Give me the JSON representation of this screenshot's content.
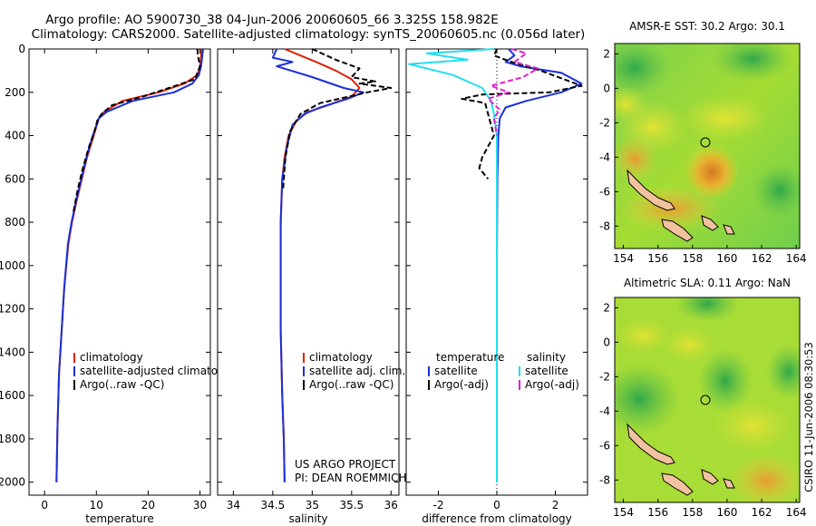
{
  "header": {
    "title_line1": "Argo profile: AO 5900730_38 04-Jun-2006 20060605_66 3.325S 158.982E",
    "title_line2": "Climatology: CARS2000. Satellite-adjusted climatology: synTS_20060605.nc (0.056d later)"
  },
  "colors": {
    "climatology": "#dd2200",
    "satellite": "#1a2fd8",
    "argo": "#000000",
    "satellite_diff_sal": "#22ddee",
    "argo_adj_sal": "#e020d0"
  },
  "chart_data": [
    {
      "type": "line",
      "name": "temperature-profile",
      "xlabel": "temperature",
      "ylabel": "",
      "xlim": [
        -3,
        32
      ],
      "ylim": [
        2060,
        0
      ],
      "x_ticks": [
        0,
        10,
        20,
        30
      ],
      "y_ticks": [
        0,
        200,
        400,
        600,
        800,
        1000,
        1200,
        1400,
        1600,
        1800,
        2000
      ],
      "legend": [
        "climatology",
        "satellite-adjusted climatology",
        "Argo(..raw -QC)"
      ],
      "series": [
        {
          "name": "climatology",
          "style": "solid",
          "color_key": "climatology",
          "x": [
            30.3,
            30.2,
            30.0,
            29.5,
            27.0,
            22.0,
            15.0,
            11.5,
            10.5,
            9.5,
            8.2,
            7.2,
            6.2,
            5.3,
            4.6,
            3.8,
            3.3,
            2.8,
            2.5,
            2.3
          ],
          "y": [
            0,
            40,
            80,
            120,
            160,
            200,
            240,
            290,
            320,
            400,
            500,
            600,
            700,
            800,
            900,
            1100,
            1300,
            1500,
            1750,
            2000
          ]
        },
        {
          "name": "satellite-adjusted climatology",
          "style": "solid",
          "color_key": "satellite",
          "x": [
            30.6,
            30.4,
            30.2,
            29.8,
            28.5,
            25.0,
            17.0,
            12.0,
            10.5,
            9.3,
            8.1,
            7.1,
            6.1,
            5.2,
            4.5,
            3.8,
            3.3,
            2.8,
            2.5,
            2.3
          ],
          "y": [
            0,
            40,
            80,
            120,
            160,
            200,
            240,
            290,
            320,
            400,
            500,
            600,
            700,
            800,
            900,
            1100,
            1300,
            1500,
            1750,
            2000
          ]
        },
        {
          "name": "Argo(..raw -QC)",
          "style": "dashed",
          "color_key": "argo",
          "x": [
            29.5,
            29.6,
            30.0,
            29.0,
            24.0,
            19.0,
            13.0,
            11.0,
            10.2,
            9.4,
            8.6,
            7.4,
            6.4,
            5.6
          ],
          "y": [
            0,
            30,
            80,
            140,
            180,
            220,
            260,
            300,
            330,
            400,
            450,
            550,
            650,
            750
          ]
        }
      ]
    },
    {
      "type": "line",
      "name": "salinity-profile",
      "xlabel": "salinity",
      "ylabel": "",
      "xlim": [
        33.8,
        36.1
      ],
      "ylim": [
        2060,
        0
      ],
      "x_ticks": [
        34,
        34.5,
        35,
        35.5,
        36
      ],
      "x_tick_labels": [
        "34",
        "34.5",
        "35",
        "35.5",
        "36"
      ],
      "legend": [
        "climatology",
        "satellite adj. clim.",
        "Argo(..raw -QC)"
      ],
      "series": [
        {
          "name": "climatology",
          "style": "solid",
          "color_key": "climatology",
          "x": [
            34.65,
            34.85,
            35.05,
            35.3,
            35.5,
            35.6,
            35.5,
            35.2,
            34.95,
            34.8,
            34.7,
            34.65,
            34.62,
            34.6,
            34.6,
            34.6,
            34.62,
            34.64,
            34.65
          ],
          "y": [
            0,
            30,
            60,
            100,
            140,
            180,
            220,
            260,
            290,
            330,
            400,
            500,
            600,
            800,
            1000,
            1300,
            1600,
            1800,
            2000
          ]
        },
        {
          "name": "satellite adj. clim.",
          "style": "solid",
          "color_key": "satellite",
          "x": [
            34.55,
            34.5,
            34.75,
            34.55,
            35.0,
            35.4,
            35.65,
            35.45,
            35.1,
            34.9,
            34.75,
            34.68,
            34.62,
            34.6,
            34.6,
            34.6,
            34.62,
            34.64,
            34.65
          ],
          "y": [
            0,
            40,
            60,
            80,
            130,
            180,
            200,
            230,
            270,
            300,
            350,
            450,
            600,
            800,
            1000,
            1300,
            1600,
            1800,
            2000
          ]
        },
        {
          "name": "Argo(..raw -QC)",
          "style": "dashed",
          "color_key": "argo",
          "x": [
            35.0,
            35.3,
            35.6,
            35.5,
            35.8,
            35.6,
            36.0,
            35.7,
            35.1,
            34.85,
            34.72,
            34.66,
            34.63
          ],
          "y": [
            0,
            50,
            90,
            130,
            150,
            160,
            180,
            200,
            250,
            300,
            380,
            500,
            650
          ]
        }
      ],
      "annotations": [
        "US ARGO PROJECT",
        "PI: DEAN ROEMMICH"
      ]
    },
    {
      "type": "line",
      "name": "difference-profile",
      "xlabel": "difference from climatology",
      "ylabel": "",
      "xlim": [
        -3.1,
        3.1
      ],
      "ylim": [
        2060,
        0
      ],
      "x_ticks": [
        -2,
        0,
        2
      ],
      "legend_headers": [
        "temperature",
        "salinity"
      ],
      "legend": [
        "satellite",
        "Argo(-adj)",
        "satellite",
        "Argo(-adj)"
      ],
      "series": [
        {
          "name": "temperature satellite",
          "style": "solid",
          "color_key": "satellite",
          "x": [
            0.4,
            0.6,
            0.3,
            0.8,
            2.2,
            2.9,
            2.2,
            1.0,
            0.3,
            0.1,
            0.05,
            0.02,
            0.0,
            0.0
          ],
          "y": [
            0,
            30,
            60,
            80,
            110,
            160,
            200,
            240,
            270,
            320,
            400,
            600,
            1000,
            2000
          ]
        },
        {
          "name": "temperature Argo(-adj)",
          "style": "dashed",
          "color_key": "argo",
          "x": [
            0.0,
            -0.1,
            0.5,
            1.5,
            2.9,
            1.8,
            -0.5,
            -1.2,
            -0.4,
            -0.3,
            -0.1,
            -0.5,
            -0.6,
            -0.3
          ],
          "y": [
            0,
            30,
            60,
            100,
            170,
            200,
            210,
            230,
            250,
            300,
            400,
            500,
            550,
            600
          ]
        },
        {
          "name": "salinity satellite",
          "style": "solid",
          "color_key": "satellite_diff_sal",
          "x": [
            -0.1,
            -2.4,
            -1.0,
            -3.0,
            -1.5,
            -0.5,
            -0.2,
            -0.1,
            0.0,
            0.0,
            0.0
          ],
          "y": [
            0,
            20,
            50,
            70,
            120,
            180,
            240,
            300,
            400,
            1000,
            2000
          ]
        },
        {
          "name": "salinity Argo(-adj)",
          "style": "dashed",
          "color_key": "argo_adj_sal",
          "x": [
            0.5,
            1.0,
            0.6,
            1.4,
            0.9,
            -0.2,
            0.4,
            -0.3,
            0.1,
            -0.1,
            0.0
          ],
          "y": [
            0,
            20,
            60,
            90,
            130,
            170,
            200,
            230,
            280,
            320,
            400
          ]
        }
      ]
    },
    {
      "type": "heatmap",
      "name": "amsr-sst-map",
      "title": "AMSR-E SST: 30.2  Argo: 30.1",
      "xlim": [
        153.5,
        164.2
      ],
      "ylim": [
        -9.3,
        2.6
      ],
      "x_ticks": [
        154,
        156,
        158,
        160,
        162,
        164
      ],
      "y_ticks": [
        2,
        0,
        -2,
        -4,
        -6,
        -8
      ],
      "marker": {
        "lon": 158.98,
        "lat": -3.33
      }
    },
    {
      "type": "heatmap",
      "name": "altimetric-sla-map",
      "title": "Altimetric SLA: 0.11  Argo: NaN",
      "xlim": [
        153.5,
        164.2
      ],
      "ylim": [
        -9.3,
        2.6
      ],
      "x_ticks": [
        154,
        156,
        158,
        160,
        162,
        164
      ],
      "y_ticks": [
        2,
        0,
        -2,
        -4,
        -6,
        -8
      ],
      "marker": {
        "lon": 158.98,
        "lat": -3.33
      }
    }
  ],
  "side_label": "CSIRO 11-Jun-2006 08:30:53"
}
